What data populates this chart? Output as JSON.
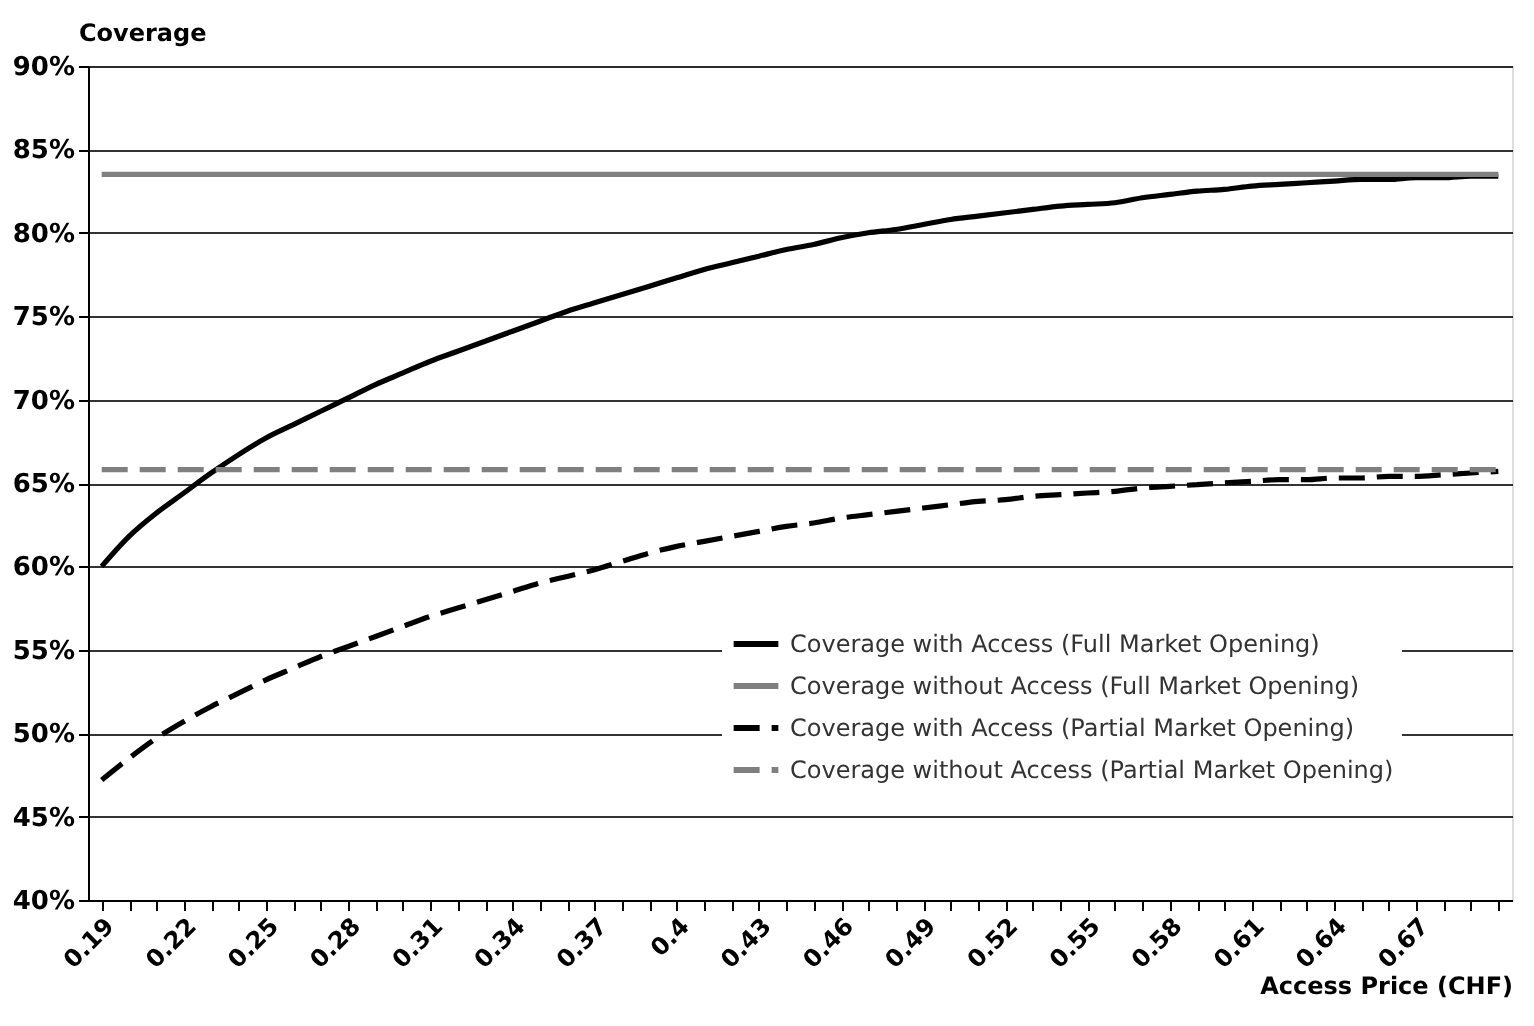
{
  "chart_data": {
    "type": "line",
    "ylabel": "Coverage",
    "xlabel": "Access Price (CHF)",
    "categories": [
      "0.19",
      null,
      null,
      "0.22",
      null,
      null,
      "0.25",
      null,
      null,
      "0.28",
      null,
      null,
      "0.31",
      null,
      null,
      "0.34",
      null,
      null,
      "0.37",
      null,
      null,
      "0.4",
      null,
      null,
      "0.43",
      null,
      null,
      "0.46",
      null,
      null,
      "0.49",
      null,
      null,
      "0.52",
      null,
      null,
      "0.55",
      null,
      null,
      "0.58",
      null,
      null,
      "0.61",
      null,
      null,
      "0.64",
      null,
      null,
      "0.67",
      null,
      null,
      null
    ],
    "series": [
      {
        "name": "Coverage with Access (Full Market Opening)",
        "color": "#000000",
        "line_style": "solid",
        "values": [
          60.0,
          61.8,
          63.2,
          64.4,
          65.6,
          66.7,
          67.7,
          68.5,
          69.3,
          70.1,
          70.9,
          71.6,
          72.3,
          72.9,
          73.5,
          74.1,
          74.7,
          75.3,
          75.8,
          76.3,
          76.8,
          77.3,
          77.8,
          78.2,
          78.6,
          79.0,
          79.3,
          79.7,
          80.0,
          80.2,
          80.5,
          80.8,
          81.0,
          81.2,
          81.4,
          81.6,
          81.7,
          81.8,
          82.1,
          82.3,
          82.5,
          82.6,
          82.8,
          82.9,
          83.0,
          83.1,
          83.2,
          83.2,
          83.3,
          83.3,
          83.4,
          83.4
        ]
      },
      {
        "name": "Coverage without Access (Full Market Opening)",
        "color": "#808080",
        "line_style": "solid",
        "values": [
          83.5,
          83.5,
          83.5,
          83.5,
          83.5,
          83.5,
          83.5,
          83.5,
          83.5,
          83.5,
          83.5,
          83.5,
          83.5,
          83.5,
          83.5,
          83.5,
          83.5,
          83.5,
          83.5,
          83.5,
          83.5,
          83.5,
          83.5,
          83.5,
          83.5,
          83.5,
          83.5,
          83.5,
          83.5,
          83.5,
          83.5,
          83.5,
          83.5,
          83.5,
          83.5,
          83.5,
          83.5,
          83.5,
          83.5,
          83.5,
          83.5,
          83.5,
          83.5,
          83.5,
          83.5,
          83.5,
          83.5,
          83.5,
          83.5,
          83.5,
          83.5,
          83.5
        ]
      },
      {
        "name": "Coverage with Access (Partial Market Opening)",
        "color": "#000000",
        "line_style": "dashed",
        "values": [
          47.2,
          48.5,
          49.7,
          50.7,
          51.6,
          52.4,
          53.2,
          53.9,
          54.6,
          55.2,
          55.8,
          56.4,
          57.0,
          57.5,
          58.0,
          58.5,
          59.0,
          59.4,
          59.8,
          60.3,
          60.8,
          61.2,
          61.5,
          61.8,
          62.1,
          62.4,
          62.6,
          62.9,
          63.1,
          63.3,
          63.5,
          63.7,
          63.9,
          64.0,
          64.2,
          64.3,
          64.4,
          64.5,
          64.7,
          64.8,
          64.9,
          65.0,
          65.1,
          65.2,
          65.2,
          65.3,
          65.3,
          65.4,
          65.4,
          65.5,
          65.6,
          65.7
        ]
      },
      {
        "name": "Coverage without Access (Partial Market Opening)",
        "color": "#808080",
        "line_style": "dashed",
        "values": [
          65.8,
          65.8,
          65.8,
          65.8,
          65.8,
          65.8,
          65.8,
          65.8,
          65.8,
          65.8,
          65.8,
          65.8,
          65.8,
          65.8,
          65.8,
          65.8,
          65.8,
          65.8,
          65.8,
          65.8,
          65.8,
          65.8,
          65.8,
          65.8,
          65.8,
          65.8,
          65.8,
          65.8,
          65.8,
          65.8,
          65.8,
          65.8,
          65.8,
          65.8,
          65.8,
          65.8,
          65.8,
          65.8,
          65.8,
          65.8,
          65.8,
          65.8,
          65.8,
          65.8,
          65.8,
          65.8,
          65.8,
          65.8,
          65.8,
          65.8,
          65.8,
          65.8
        ]
      }
    ],
    "ylim": [
      40,
      90
    ],
    "yticks": [
      {
        "value": 40,
        "label": "40%"
      },
      {
        "value": 45,
        "label": "45%"
      },
      {
        "value": 50,
        "label": "50%"
      },
      {
        "value": 55,
        "label": "55%"
      },
      {
        "value": 60,
        "label": "60%"
      },
      {
        "value": 65,
        "label": "65%"
      },
      {
        "value": 70,
        "label": "70%"
      },
      {
        "value": 75,
        "label": "75%"
      },
      {
        "value": 80,
        "label": "80%"
      },
      {
        "value": 85,
        "label": "85%"
      },
      {
        "value": 90,
        "label": "90%"
      }
    ],
    "grid": "y",
    "legend": "bottom right",
    "marker": "none"
  }
}
